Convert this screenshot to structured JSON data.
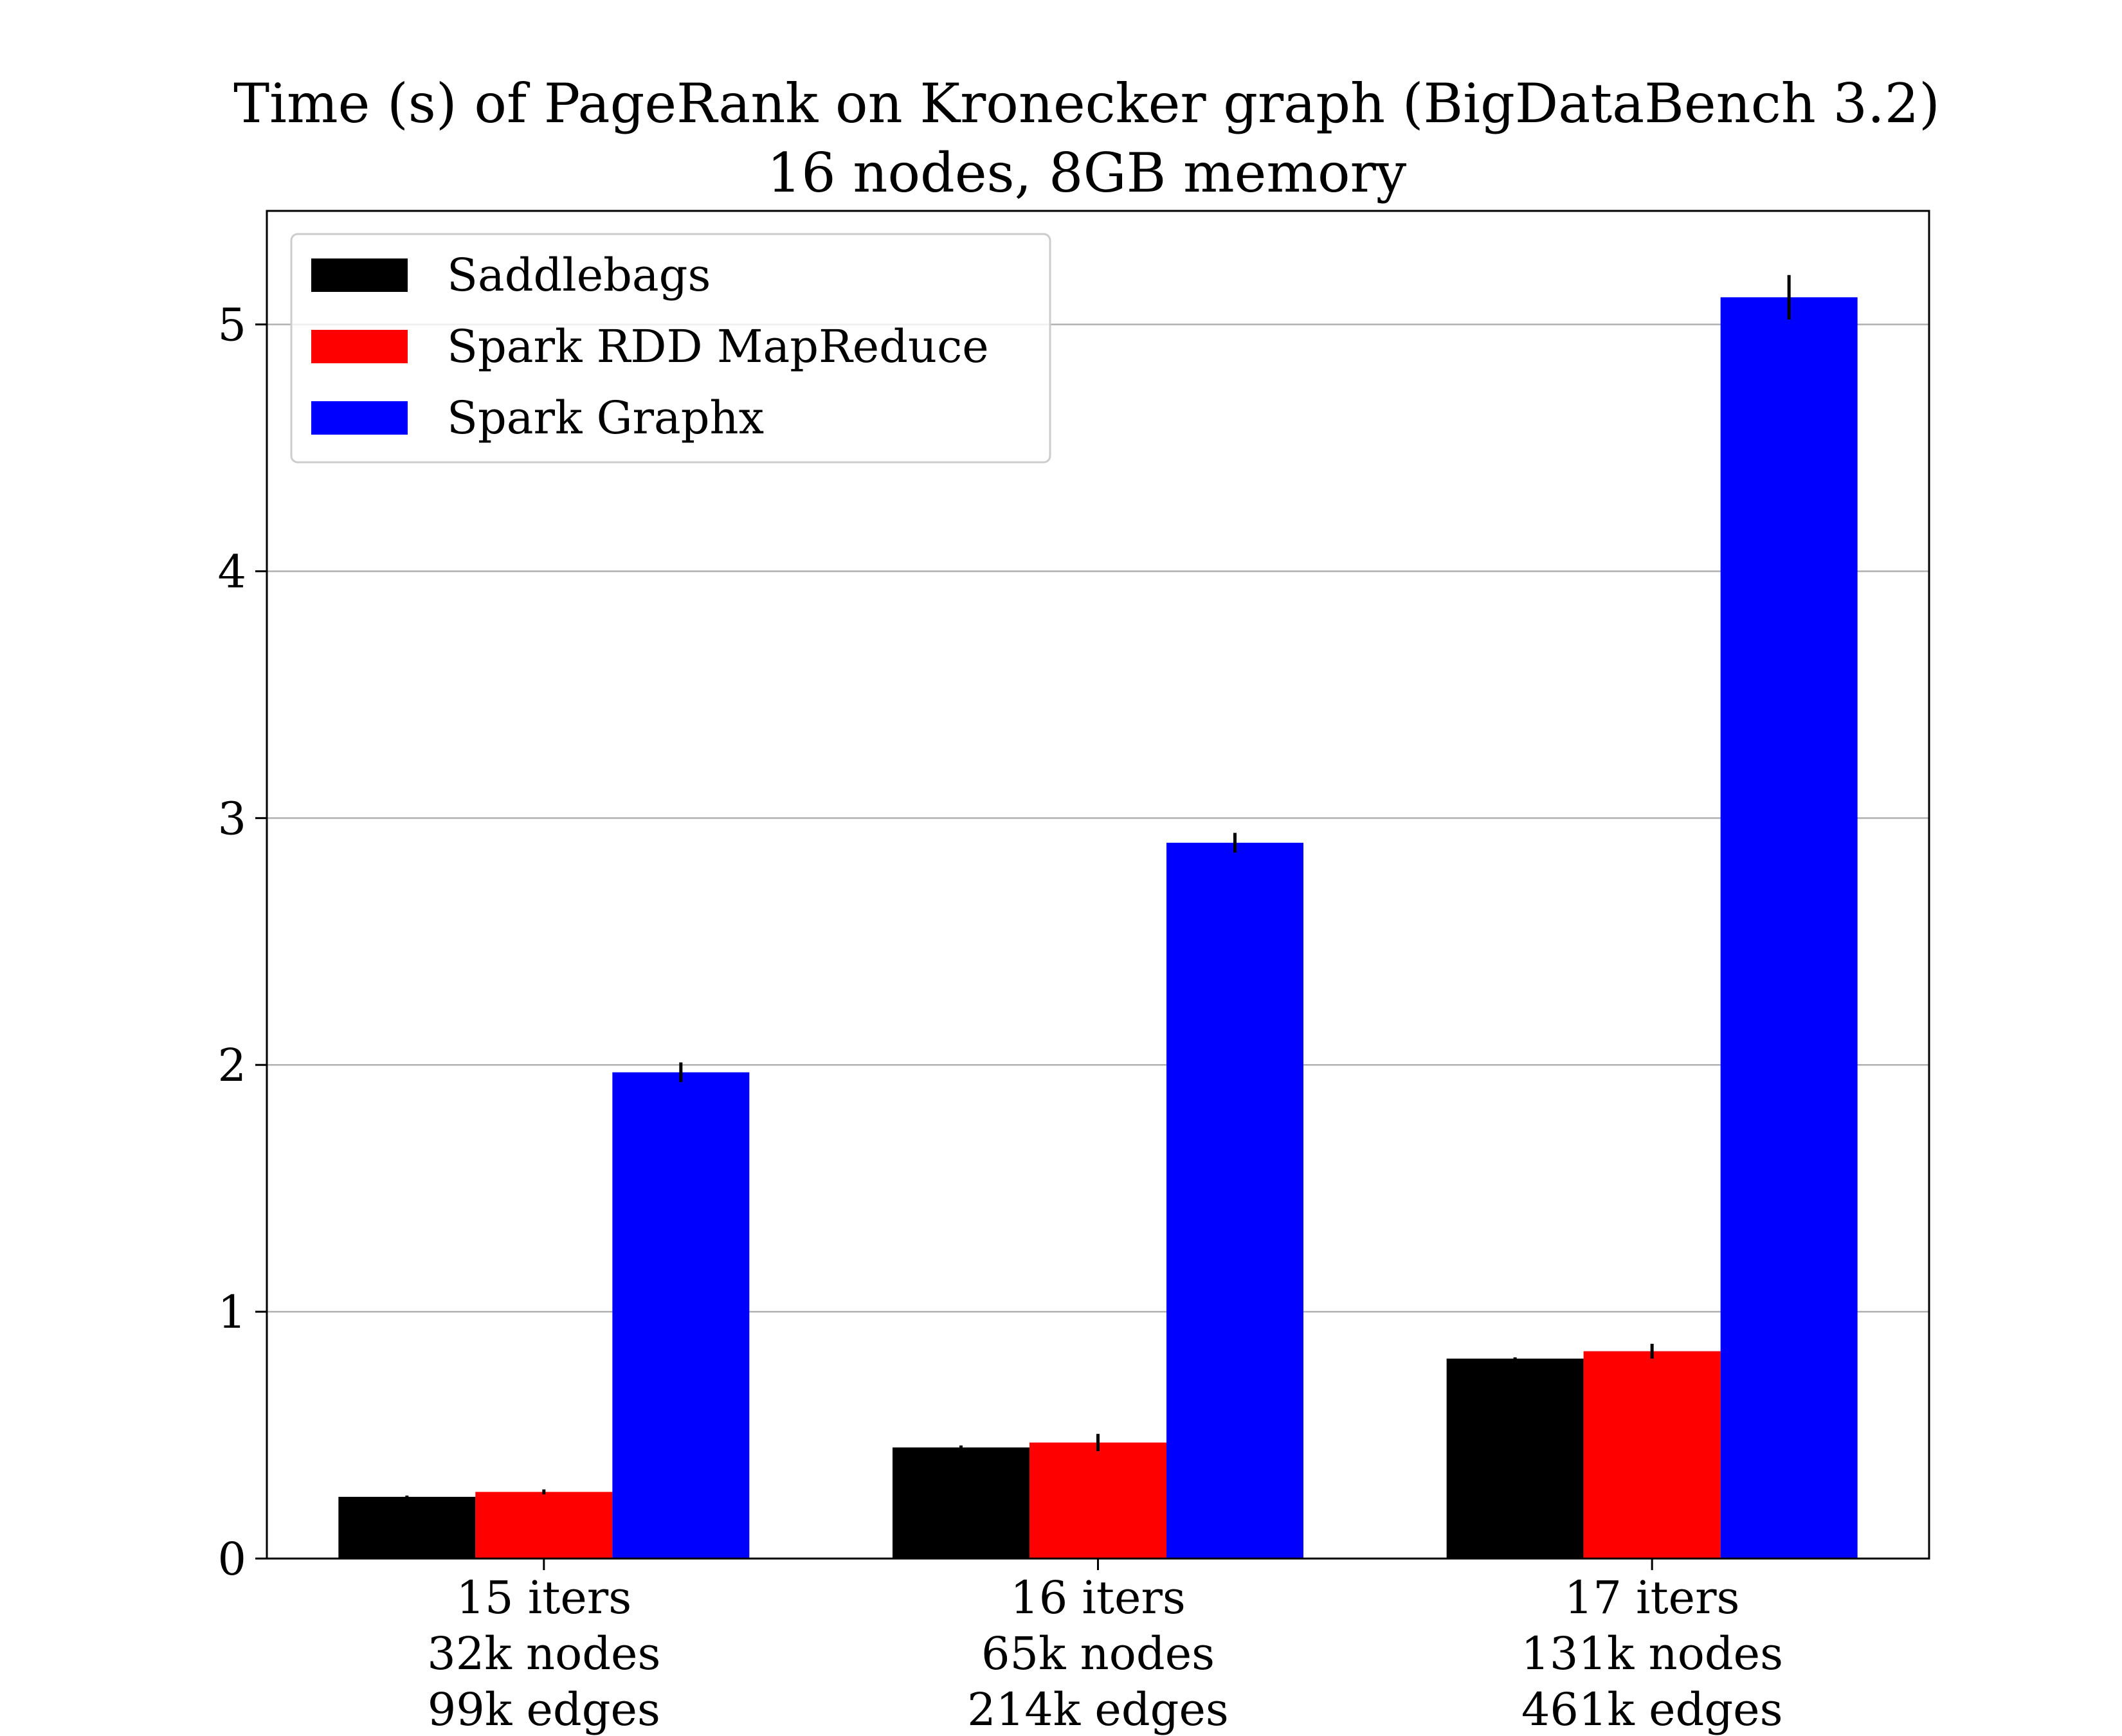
{
  "chart_data": {
    "type": "bar",
    "title": [
      "Time (s) of PageRank on Kronecker graph (BigDataBench 3.2)",
      "16 nodes, 8GB memory"
    ],
    "categories": [
      [
        "15 iters",
        "32k nodes",
        "99k edges"
      ],
      [
        "16 iters",
        "65k nodes",
        "214k edges"
      ],
      [
        "17 iters",
        "131k nodes",
        "461k edges"
      ]
    ],
    "series": [
      {
        "name": "Saddlebags",
        "color": "#000000",
        "values": [
          0.25,
          0.45,
          0.81
        ],
        "errors": [
          0.005,
          0.008,
          0.005
        ]
      },
      {
        "name": "Spark RDD MapReduce",
        "color": "#ff0000",
        "values": [
          0.27,
          0.47,
          0.84
        ],
        "errors": [
          0.01,
          0.035,
          0.03
        ]
      },
      {
        "name": "Spark Graphx",
        "color": "#0000ff",
        "values": [
          1.97,
          2.9,
          5.11
        ],
        "errors": [
          0.04,
          0.04,
          0.09
        ]
      }
    ],
    "yticks": [
      0,
      1,
      2,
      3,
      4,
      5
    ],
    "ylim": [
      0,
      5.46
    ],
    "grid": "y",
    "legend_position": "top-left",
    "errorbar_color": "#000000"
  }
}
